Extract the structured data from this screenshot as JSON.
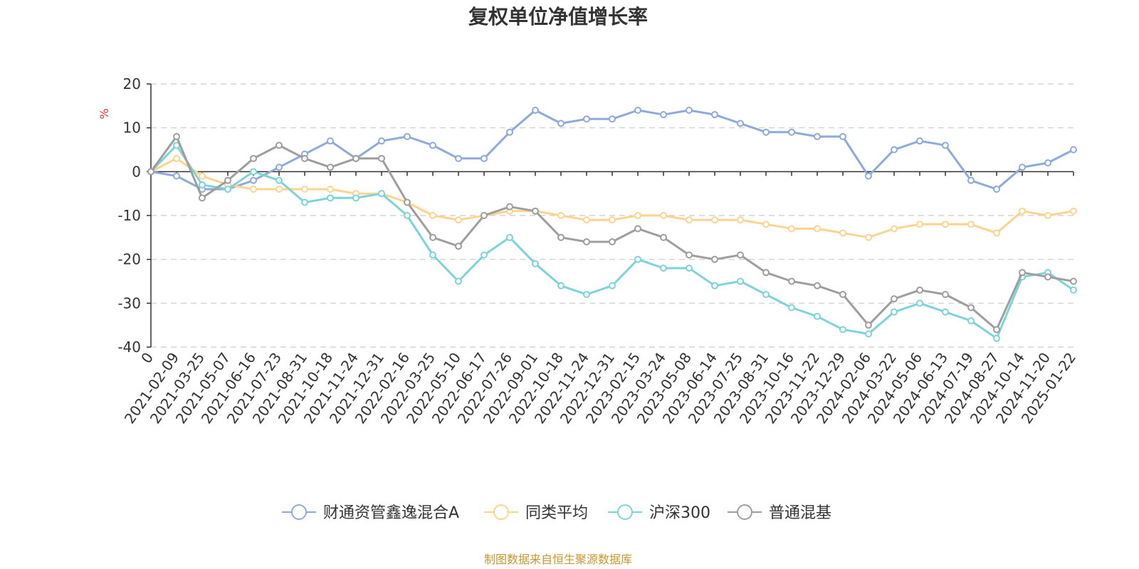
{
  "chart_data": {
    "type": "line",
    "title": "复权单位净值增长率",
    "ylabel": "%",
    "ylim": [
      -40,
      20
    ],
    "yticks": [
      20,
      10,
      0,
      -10,
      -20,
      -30,
      -40
    ],
    "categories": [
      "0",
      "2021-02-09",
      "2021-03-25",
      "2021-05-07",
      "2021-06-16",
      "2021-07-23",
      "2021-08-31",
      "2021-10-18",
      "2021-11-24",
      "2021-12-31",
      "2022-02-16",
      "2022-03-25",
      "2022-05-10",
      "2022-06-17",
      "2022-07-26",
      "2022-09-01",
      "2022-10-18",
      "2022-11-24",
      "2022-12-31",
      "2023-02-15",
      "2023-03-24",
      "2023-05-08",
      "2023-06-14",
      "2023-07-25",
      "2023-08-31",
      "2023-10-16",
      "2023-11-22",
      "2023-12-29",
      "2024-02-06",
      "2024-03-22",
      "2024-05-06",
      "2024-06-13",
      "2024-07-19",
      "2024-08-27",
      "2024-10-14",
      "2024-11-20",
      "2025-01-22"
    ],
    "series": [
      {
        "name": "财通资管鑫逸混合A",
        "color": "#8eaadb",
        "values": [
          0,
          -1,
          -4,
          -4,
          -2,
          1,
          4,
          7,
          3,
          7,
          8,
          6,
          3,
          3,
          9,
          14,
          11,
          12,
          12,
          14,
          13,
          14,
          13,
          11,
          9,
          9,
          8,
          8,
          -1,
          5,
          7,
          6,
          -2,
          -4,
          1,
          2,
          5
        ]
      },
      {
        "name": "同类平均",
        "color": "#fdd48f",
        "values": [
          0,
          3,
          -1,
          -3,
          -4,
          -4,
          -4,
          -4,
          -5,
          -5,
          -7,
          -10,
          -11,
          -10,
          -9,
          -9,
          -10,
          -11,
          -11,
          -10,
          -10,
          -11,
          -11,
          -11,
          -12,
          -13,
          -13,
          -14,
          -15,
          -13,
          -12,
          -12,
          -12,
          -14,
          -9,
          -10,
          -9
        ]
      },
      {
        "name": "沪深300",
        "color": "#7ed3d9",
        "values": [
          0,
          6,
          -3,
          -4,
          0,
          -2,
          -7,
          -6,
          -6,
          -5,
          -10,
          -19,
          -25,
          -19,
          -15,
          -21,
          -26,
          -28,
          -26,
          -20,
          -22,
          -22,
          -26,
          -25,
          -28,
          -31,
          -33,
          -36,
          -37,
          -32,
          -30,
          -32,
          -34,
          -38,
          -24,
          -23,
          -27
        ]
      },
      {
        "name": "普通混基",
        "color": "#9e9e9e",
        "values": [
          0,
          8,
          -6,
          -2,
          3,
          6,
          3,
          1,
          3,
          3,
          -7,
          -15,
          -17,
          -10,
          -8,
          -9,
          -15,
          -16,
          -16,
          -13,
          -15,
          -19,
          -20,
          -19,
          -23,
          -25,
          -26,
          -28,
          -35,
          -29,
          -27,
          -28,
          -31,
          -36,
          -23,
          -24,
          -25
        ]
      }
    ],
    "legend_position": "bottom-center",
    "grid": true
  },
  "source_note": "制图数据来自恒生聚源数据库"
}
